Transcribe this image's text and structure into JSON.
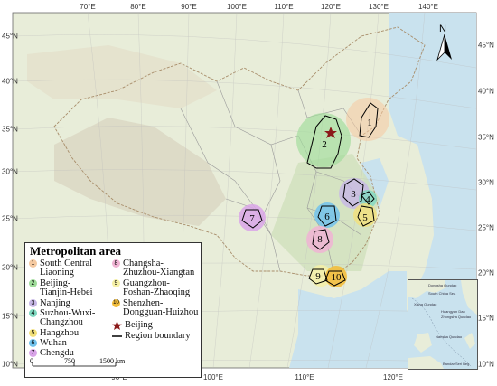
{
  "map": {
    "top_ticks": [
      "70°E",
      "80°E",
      "90°E",
      "100°E",
      "110°E",
      "120°E",
      "130°E",
      "140°E"
    ],
    "bottom_ticks": [
      "90°E",
      "100°E",
      "110°E",
      "120°E"
    ],
    "left_ticks": [
      "45°N",
      "40°N",
      "35°N",
      "30°N",
      "25°N",
      "20°N",
      "15°N",
      "10°N"
    ],
    "right_ticks": [
      "45°N",
      "40°N",
      "35°N",
      "30°N",
      "25°N",
      "20°N",
      "15°N",
      "10°N"
    ],
    "compass_label": "N",
    "region_numbers": [
      "1",
      "2",
      "3",
      "4",
      "5",
      "6",
      "7",
      "8",
      "9",
      "10"
    ]
  },
  "legend": {
    "title": "Metropolitan area",
    "items": [
      {
        "num": "1",
        "label": [
          "South Central",
          "Liaoning"
        ],
        "color": "#f5c9a0"
      },
      {
        "num": "2",
        "label": [
          "Beijing-",
          "Tianjin-Hebei"
        ],
        "color": "#9fdc9a"
      },
      {
        "num": "3",
        "label": [
          "Nanjing"
        ],
        "color": "#c7b7e6"
      },
      {
        "num": "4",
        "label": [
          "Suzhou-Wuxi-",
          "Changzhou"
        ],
        "color": "#7fd8c0"
      },
      {
        "num": "5",
        "label": [
          "Hangzhou"
        ],
        "color": "#f2e07a"
      },
      {
        "num": "6",
        "label": [
          "Wuhan"
        ],
        "color": "#72c2ec"
      },
      {
        "num": "7",
        "label": [
          "Chengdu"
        ],
        "color": "#d9a4e8"
      },
      {
        "num": "8",
        "label": [
          "Changsha-",
          "Zhuzhou-Xiangtan"
        ],
        "color": "#f0b4d4"
      },
      {
        "num": "9",
        "label": [
          "Guangzhou-",
          "Foshan-Zhaoqing"
        ],
        "color": "#f5f0a6"
      },
      {
        "num": "10",
        "label": [
          "Shenzhen-",
          "Dongguan-Huizhou"
        ],
        "color": "#f2bd3c"
      }
    ],
    "beijing_label": "Beijing",
    "boundary_label": "Region boundary",
    "scale": {
      "labels": [
        "0",
        "750",
        "1500 km"
      ]
    }
  },
  "inset": {
    "labels": [
      "Dongsha Qundao",
      "South China Sea",
      "Xisha Qundao",
      "Huangyan Dao",
      "Zhongsha Qundao",
      "Nansha Qundao",
      "Bandar Seri Beg"
    ]
  }
}
